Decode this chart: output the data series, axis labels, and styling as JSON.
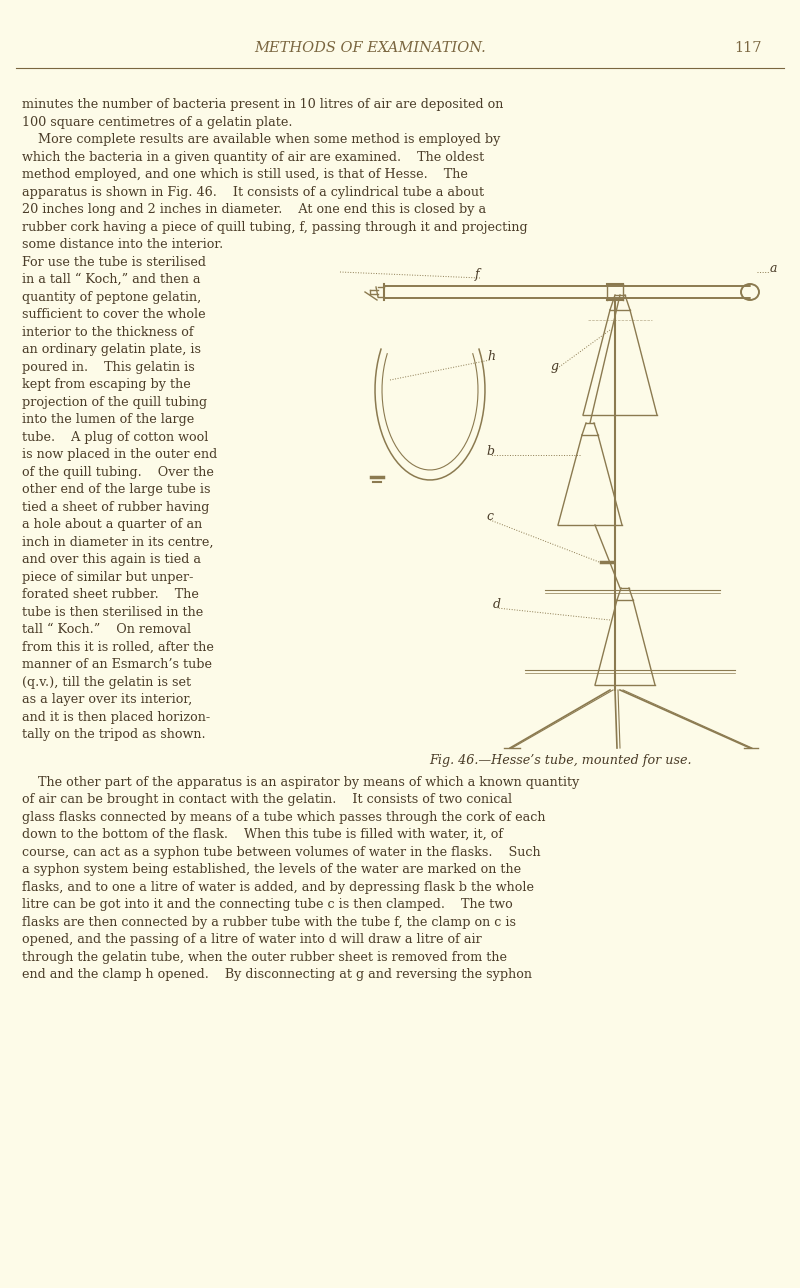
{
  "bg_color": "#fdfbe8",
  "page_width": 8.0,
  "page_height": 12.88,
  "dpi": 100,
  "header_title": "METHODS OF EXAMINATION.",
  "header_page": "117",
  "header_color": "#7a6640",
  "text_color": "#4a3c28",
  "line_color": "#8b7a50",
  "fig_caption": "Fig. 46.—Hesse’s tube, mounted for use.",
  "para1_lines": [
    "minutes the number of bacteria present in 10 litres of air are deposited on",
    "100 square centimetres of a gelatin plate.",
    "    More complete results are available when some method is employed by",
    "which the bacteria in a given quantity of air are examined.    The oldest",
    "method employed, and one which is still used, is that of Hesse.    The",
    "apparatus is shown in Fig. 46.    It consists of a cylindrical tube a about",
    "20 inches long and 2 inches in diameter.    At one end this is closed by a",
    "rubber cork having a piece of quill tubing, f, passing through it and projecting",
    "some distance into the interior."
  ],
  "left_col_lines": [
    "For use the tube is sterilised",
    "in a tall “ Koch,” and then a",
    "quantity of peptone gelatin,",
    "sufficient to cover the whole",
    "interior to the thickness of",
    "an ordinary gelatin plate, is",
    "poured in.    This gelatin is",
    "kept from escaping by the",
    "projection of the quill tubing",
    "into the lumen of the large",
    "tube.    A plug of cotton wool",
    "is now placed in the outer end",
    "of the quill tubing.    Over the",
    "other end of the large tube is",
    "tied a sheet of rubber having",
    "a hole about a quarter of an",
    "inch in diameter in its centre,",
    "and over this again is tied a",
    "piece of similar but unper-",
    "forated sheet rubber.    The",
    "tube is then sterilised in the",
    "tall “ Koch.”    On removal",
    "from this it is rolled, after the",
    "manner of an Esmarch’s tube",
    "(q.v.), till the gelatin is set",
    "as a layer over its interior,",
    "and it is then placed horizon-",
    "tally on the tripod as shown."
  ],
  "bottom_lines": [
    "    The other part of the apparatus is an aspirator by means of which a known quantity",
    "of air can be brought in contact with the gelatin.    It consists of two conical",
    "glass flasks connected by means of a tube which passes through the cork of each",
    "down to the bottom of the flask.    When this tube is filled with water, it, of",
    "course, can act as a syphon tube between volumes of water in the flasks.    Such",
    "a syphon system being established, the levels of the water are marked on the",
    "flasks, and to one a litre of water is added, and by depressing flask b the whole",
    "litre can be got into it and the connecting tube c is then clamped.    The two",
    "flasks are then connected by a rubber tube with the tube f, the clamp on c is",
    "opened, and the passing of a litre of water into d will draw a litre of air",
    "through the gelatin tube, when the outer rubber sheet is removed from the",
    "end and the clamp h opened.    By disconnecting at g and reversing the syphon"
  ]
}
